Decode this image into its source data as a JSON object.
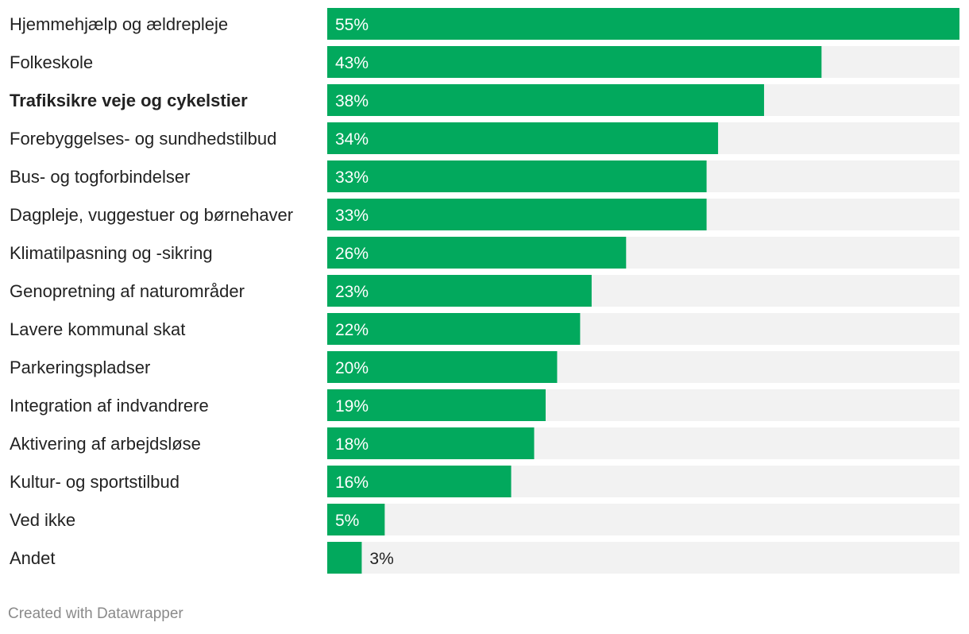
{
  "chart_data": {
    "type": "bar",
    "orientation": "horizontal",
    "categories": [
      "Hjemmehjælp og ældrepleje",
      "Folkeskole",
      "Trafiksikre veje og cykelstier",
      "Forebyggelses- og sundhedstilbud",
      "Bus- og togforbindelser",
      "Dagpleje, vuggestuer og børnehaver",
      "Klimatilpasning og -sikring",
      "Genopretning af naturområder",
      "Lavere kommunal skat",
      "Parkeringspladser",
      "Integration af indvandrere",
      "Aktivering af arbejdsløse",
      "Kultur- og sportstilbud",
      "Ved ikke",
      "Andet"
    ],
    "values": [
      55,
      43,
      38,
      34,
      33,
      33,
      26,
      23,
      22,
      20,
      19,
      18,
      16,
      5,
      3
    ],
    "value_labels": [
      "55%",
      "43%",
      "38%",
      "34%",
      "33%",
      "33%",
      "26%",
      "23%",
      "22%",
      "20%",
      "19%",
      "18%",
      "16%",
      "5%",
      "3%"
    ],
    "highlighted_category": "Trafiksikre veje og cykelstier",
    "xlim": [
      0,
      55
    ],
    "title": "",
    "xlabel": "",
    "ylabel": ""
  },
  "colors": {
    "bar": "#02a95d",
    "track": "#f2f2f2",
    "label_inside": "#ffffff",
    "label_outside": "#222222"
  },
  "footer": {
    "credit": "Created with Datawrapper"
  }
}
